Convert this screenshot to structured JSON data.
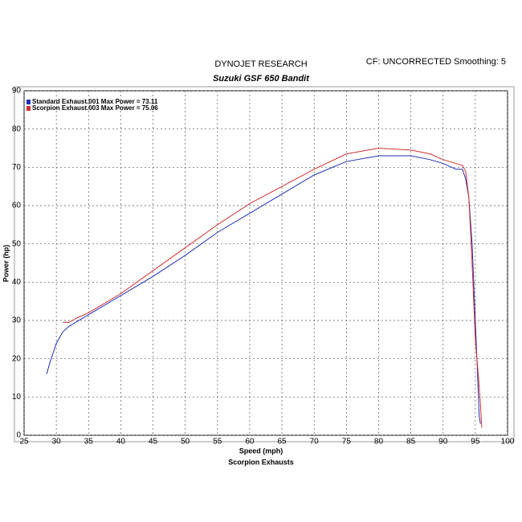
{
  "header": {
    "left": "DYNOJET RESEARCH",
    "right": "CF: UNCORRECTED  Smoothing: 5"
  },
  "chart_data": {
    "type": "line",
    "title": "Suzuki GSF 650 Bandit",
    "xlabel": "Speed (mph)",
    "ylabel": "Power (hp)",
    "subtitle": "Scorpion Exhausts",
    "xlim": [
      25,
      100
    ],
    "xticks": [
      25,
      30,
      35,
      40,
      45,
      50,
      55,
      60,
      65,
      70,
      75,
      80,
      85,
      90,
      95,
      100
    ],
    "ylim": [
      0,
      90
    ],
    "yticks": [
      0,
      10,
      20,
      30,
      40,
      50,
      60,
      70,
      80,
      90
    ],
    "grid": true,
    "legend": "top-left",
    "series": [
      {
        "name": "Standard Exhaust.001 Max Power = 73.11",
        "color": "#1f2fb5",
        "x": [
          28.5,
          29,
          30,
          31,
          32,
          33,
          34,
          35,
          37,
          40,
          45,
          50,
          55,
          60,
          65,
          70,
          75,
          80,
          85,
          88,
          90,
          92,
          93,
          93.5,
          94,
          94.5,
          95,
          95.3,
          95.6,
          95.8
        ],
        "values": [
          16,
          19,
          24,
          27,
          28.5,
          29.5,
          30.5,
          31.5,
          33.5,
          36.5,
          41.5,
          47,
          53,
          58,
          63,
          68,
          71.5,
          73,
          73,
          72,
          71,
          69.5,
          69.5,
          67,
          62,
          50,
          30,
          18,
          5,
          3
        ]
      },
      {
        "name": "Scorpion Exhaust.003 Max Power = 75.06",
        "color": "#d03030",
        "x": [
          31,
          32,
          33,
          35,
          37,
          40,
          45,
          50,
          55,
          60,
          65,
          70,
          75,
          80,
          85,
          88,
          90,
          92,
          93,
          93.5,
          94,
          94.5,
          95,
          95.5,
          95.8,
          96
        ],
        "values": [
          29.5,
          29.5,
          30.5,
          32,
          34,
          37,
          43,
          49,
          55,
          60.5,
          65,
          69.5,
          73.5,
          75,
          74.5,
          73.5,
          72,
          71,
          70.5,
          69,
          62,
          45,
          25,
          15,
          8,
          2
        ]
      }
    ]
  }
}
